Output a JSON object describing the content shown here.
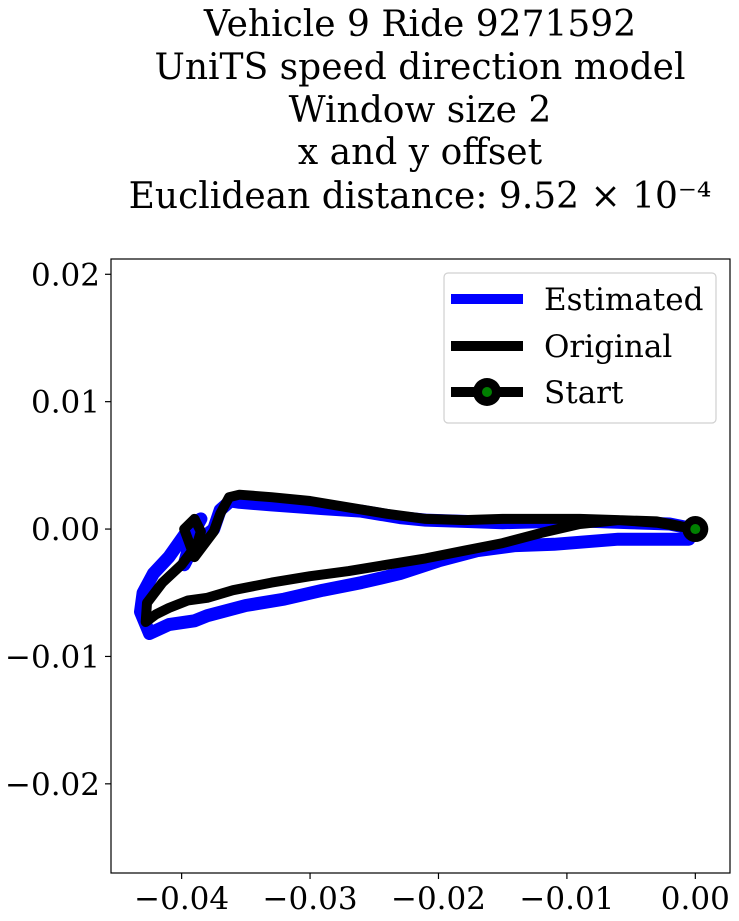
{
  "chart_data": {
    "type": "line",
    "title_lines": [
      "Vehicle 9 Ride 9271592",
      "UniTS speed direction model",
      "Window size 2",
      "x and y offset",
      "Euclidean distance: 9.52 × 10⁻⁴"
    ],
    "xlabel": "",
    "ylabel": "",
    "xlim": [
      -0.0455,
      0.0027
    ],
    "ylim": [
      -0.027,
      0.0212
    ],
    "xticks": [
      -0.04,
      -0.03,
      -0.02,
      -0.01,
      0.0
    ],
    "xtick_labels": [
      "−0.04",
      "−0.03",
      "−0.02",
      "−0.01",
      "0.00"
    ],
    "yticks": [
      -0.02,
      -0.01,
      0.0,
      0.01,
      0.02
    ],
    "ytick_labels": [
      "−0.02",
      "−0.01",
      "0.00",
      "0.01",
      "0.02"
    ],
    "grid": false,
    "legend_position": "top-right",
    "series": [
      {
        "name": "Estimated",
        "color": "#0000ff",
        "x": [
          -0.0005,
          -0.006,
          -0.011,
          -0.014,
          -0.017,
          -0.02,
          -0.023,
          -0.026,
          -0.029,
          -0.032,
          -0.035,
          -0.038,
          -0.039,
          -0.041,
          -0.0425,
          -0.0432,
          -0.043,
          -0.0422,
          -0.041,
          -0.0398,
          -0.039,
          -0.0385,
          -0.0392,
          -0.0398,
          -0.039,
          -0.0375,
          -0.037,
          -0.0362,
          -0.0355,
          -0.033,
          -0.029,
          -0.026,
          -0.023,
          -0.021,
          -0.018,
          -0.015,
          -0.011,
          -0.008,
          -0.005,
          -0.002,
          0.0
        ],
        "y": [
          -0.0008,
          -0.0008,
          -0.0012,
          -0.0013,
          -0.0017,
          -0.0025,
          -0.0035,
          -0.0042,
          -0.0048,
          -0.0055,
          -0.006,
          -0.0068,
          -0.0072,
          -0.0075,
          -0.0082,
          -0.0065,
          -0.005,
          -0.0035,
          -0.0022,
          -0.0005,
          0.0005,
          0.0008,
          -0.0005,
          -0.0028,
          -0.0012,
          0.0,
          0.0015,
          0.0022,
          0.0021,
          0.0019,
          0.0016,
          0.0014,
          0.0009,
          0.0007,
          0.0006,
          0.0005,
          0.0006,
          0.0006,
          0.0005,
          0.0004,
          0.0
        ]
      },
      {
        "name": "Original",
        "color": "#000000",
        "x": [
          0.0,
          -0.003,
          -0.006,
          -0.009,
          -0.012,
          -0.015,
          -0.018,
          -0.021,
          -0.024,
          -0.027,
          -0.03,
          -0.033,
          -0.036,
          -0.038,
          -0.0395,
          -0.041,
          -0.042,
          -0.0428,
          -0.0427,
          -0.0415,
          -0.04,
          -0.0388,
          -0.0385,
          -0.039,
          -0.0398,
          -0.039,
          -0.0375,
          -0.037,
          -0.0363,
          -0.0355,
          -0.033,
          -0.03,
          -0.027,
          -0.024,
          -0.021,
          -0.018,
          -0.015,
          -0.012,
          -0.009,
          -0.006,
          -0.003,
          0.0
        ],
        "y": [
          0.0,
          0.0005,
          0.0007,
          0.0004,
          -0.0003,
          -0.0011,
          -0.0017,
          -0.0023,
          -0.0028,
          -0.0033,
          -0.0037,
          -0.0042,
          -0.0048,
          -0.0054,
          -0.0056,
          -0.0062,
          -0.0067,
          -0.0073,
          -0.0058,
          -0.0042,
          -0.0028,
          -0.0012,
          -0.0002,
          0.0008,
          0.0,
          -0.0022,
          -0.0002,
          0.0012,
          0.0025,
          0.0027,
          0.0025,
          0.0022,
          0.0017,
          0.0012,
          0.0008,
          0.0007,
          0.0008,
          0.0008,
          0.0008,
          0.0007,
          0.0006,
          0.0
        ]
      }
    ],
    "start_point": {
      "name": "Start",
      "x": 0.0,
      "y": 0.0,
      "outer_color": "#000000",
      "inner_color": "#008000"
    }
  }
}
